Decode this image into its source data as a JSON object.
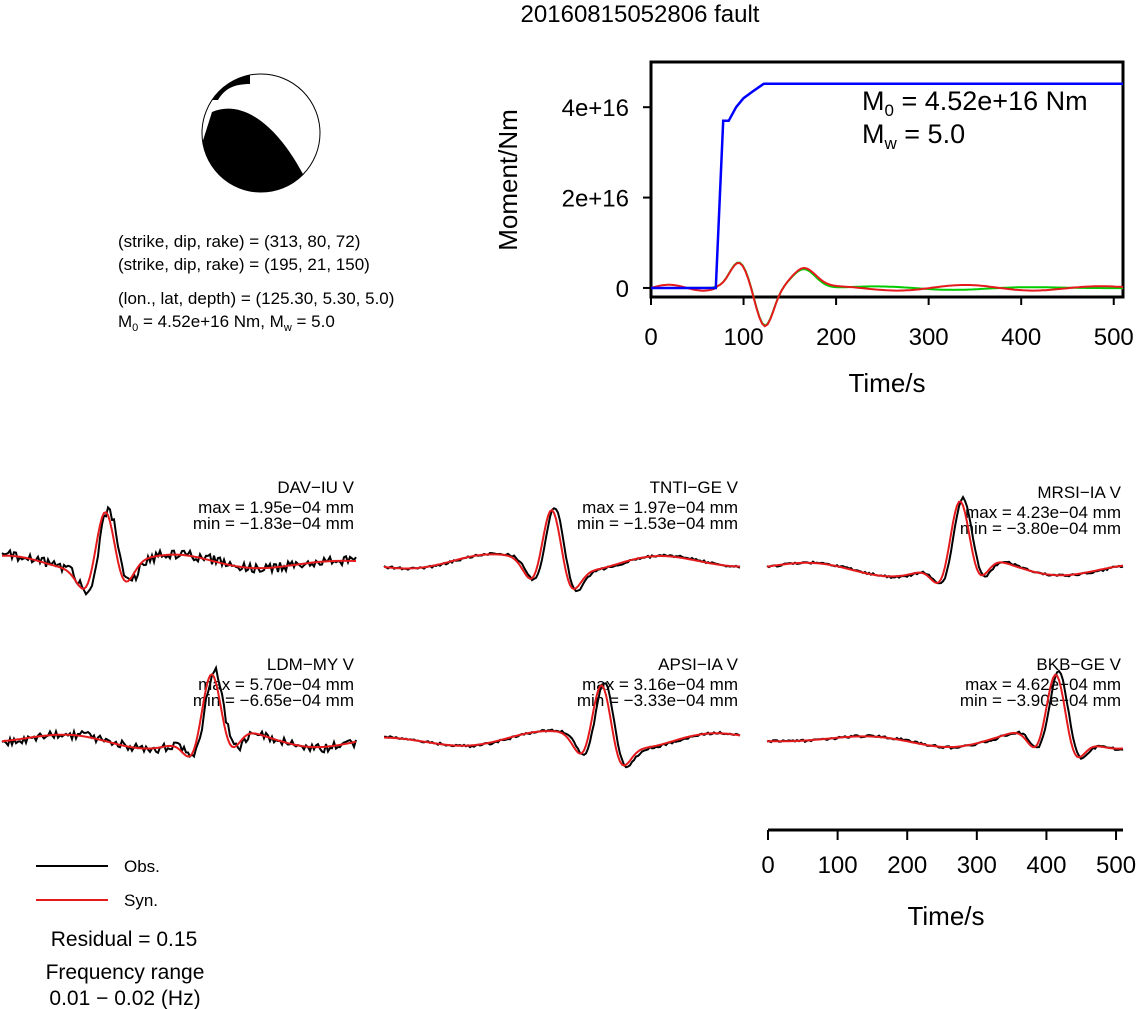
{
  "title": "20160815052806 fault",
  "mechanism": {
    "line1": "(strike, dip, rake) = (313, 80, 72)",
    "line2": "(strike, dip, rake) = (195, 21, 150)",
    "line3": "(lon., lat, depth) = (125.30, 5.30, 5.0)",
    "m0_sym": "M",
    "m0_sub": "0",
    "m0_rest": " = 4.52e+16 Nm, M",
    "mw_sub": "w",
    "mw_rest": " = 5.0"
  },
  "stf": {
    "m0_sym": "M",
    "m0_sub": "0",
    "m0_val": " = 4.52e+16 Nm",
    "mw_sym": "M",
    "mw_sub": "w",
    "mw_val": " = 5.0"
  },
  "legend": {
    "obs": "Obs.",
    "syn": "Syn."
  },
  "residual": "Residual = 0.15",
  "freq_title": "Frequency range",
  "freq_value": "0.01 − 0.02 (Hz)",
  "stations": [
    {
      "name": "DAV−IU V",
      "max": "max = 1.95e−04 mm",
      "min": "min = −1.83e−04 mm"
    },
    {
      "name": "TNTI−GE V",
      "max": "max = 1.97e−04 mm",
      "min": "min = −1.53e−04 mm"
    },
    {
      "name": "MRSI−IA V",
      "max": "max = 4.23e−04 mm",
      "min": "min = −3.80e−04 mm"
    },
    {
      "name": "LDM−MY V",
      "max": "max = 5.70e−04 mm",
      "min": "min = −6.65e−04 mm"
    },
    {
      "name": "APSI−IA V",
      "max": "max = 3.16e−04 mm",
      "min": "min = −3.33e−04 mm"
    },
    {
      "name": "BKB−GE V",
      "max": "max = 4.62e−04 mm",
      "min": "min = −3.90e−04 mm"
    }
  ],
  "colors": {
    "obs": "#000000",
    "syn": "#e41a1c",
    "moment": "#0000ff",
    "green": "#00cc00"
  },
  "chart_data": [
    {
      "type": "line",
      "xlabel": "Time/s",
      "ylabel": "Moment/Nm",
      "xlim": [
        0,
        510
      ],
      "ylim": [
        -2000000000000000.0,
        5e+16
      ],
      "xticks": [
        0,
        100,
        200,
        300,
        400,
        500
      ],
      "xtick_labels": [
        "0",
        "100",
        "200",
        "300",
        "400",
        "500"
      ],
      "yticks": [
        0,
        2e+16,
        4e+16
      ],
      "ytick_labels": [
        "0",
        "2e+16",
        "4e+16"
      ],
      "series": [
        {
          "color": "#0000ff",
          "x": [
            0,
            70,
            78,
            84,
            92,
            100,
            110,
            122,
            510
          ],
          "y": [
            0,
            0,
            3.7e+16,
            3.7e+16,
            4e+16,
            4.2e+16,
            4.35e+16,
            4.52e+16,
            4.52e+16
          ]
        }
      ]
    },
    {
      "type": "line",
      "xlabel": "Time/s",
      "xlim": [
        0,
        510
      ],
      "xticks": [
        0,
        100,
        200,
        300,
        400,
        500
      ],
      "xtick_labels": [
        "0",
        "100",
        "200",
        "300",
        "400",
        "500"
      ]
    }
  ]
}
